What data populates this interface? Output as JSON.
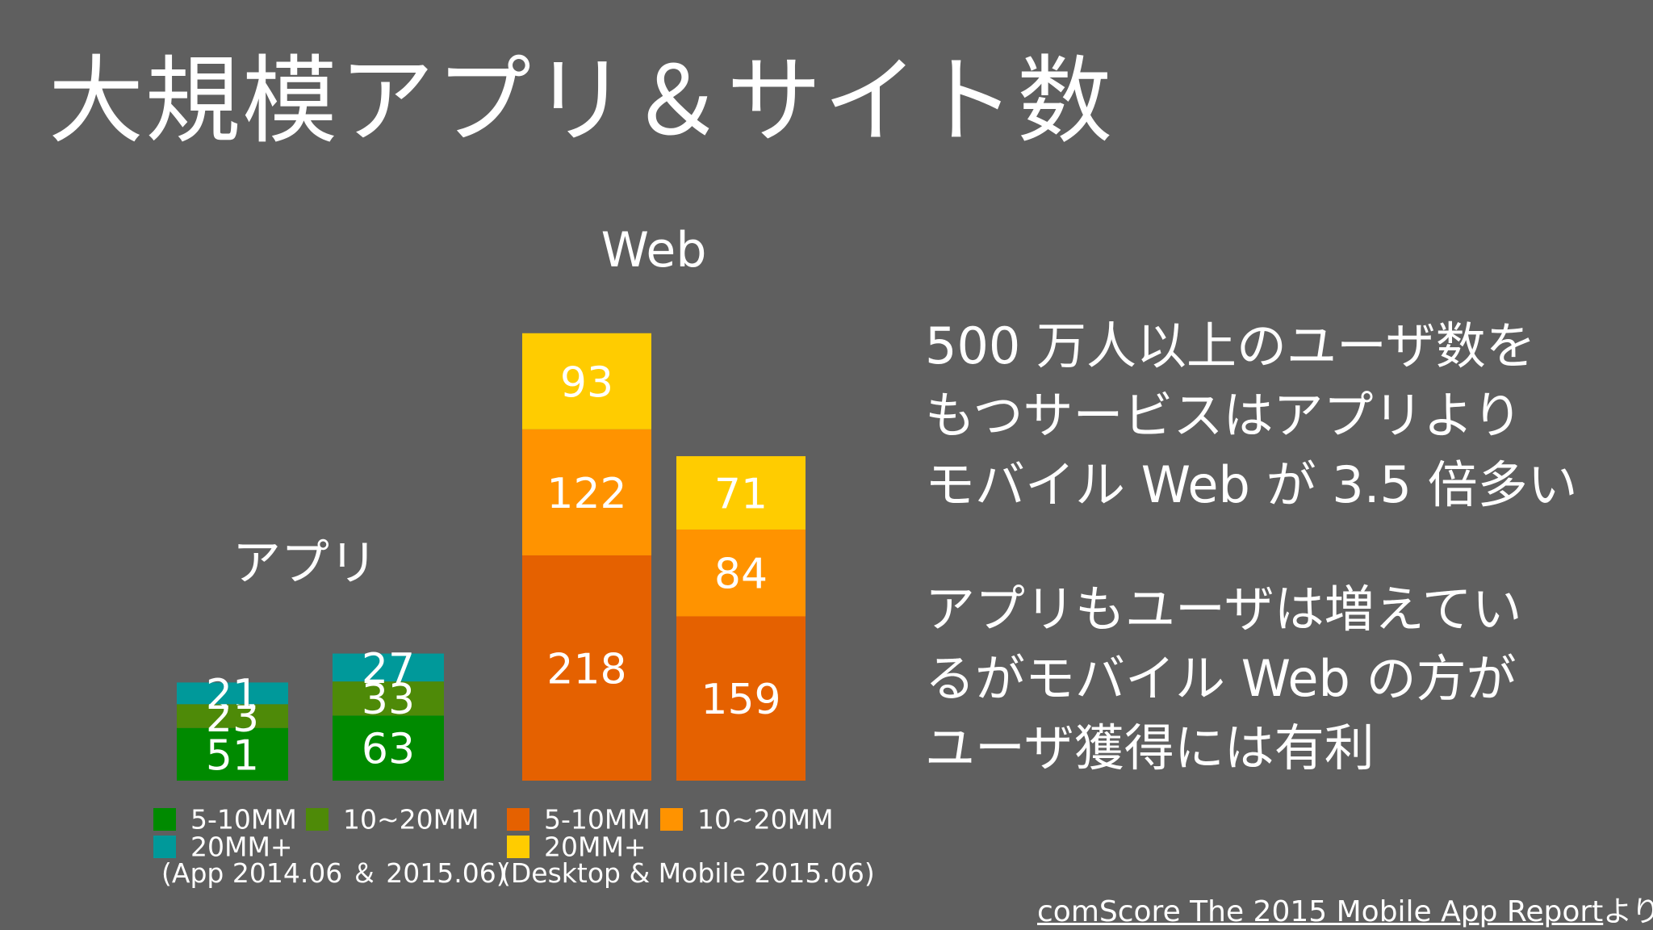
{
  "title": "大規模アプリ＆サイト数",
  "chart_data": [
    {
      "type": "bar",
      "stacked": true,
      "title": "アプリ",
      "categories": [
        "",
        ""
      ],
      "series": [
        {
          "name": "5-10MM",
          "values": [
            51,
            63
          ],
          "color": "#008a00"
        },
        {
          "name": "10~20MM",
          "values": [
            23,
            33
          ],
          "color": "#4e8a08"
        },
        {
          "name": "20MM+",
          "values": [
            21,
            27
          ],
          "color": "#00999a"
        }
      ],
      "note": "(App 2014.06 ＆ 2015.06)"
    },
    {
      "type": "bar",
      "stacked": true,
      "title": "Web",
      "categories": [
        "",
        ""
      ],
      "series": [
        {
          "name": "5-10MM",
          "values": [
            218,
            159
          ],
          "color": "#e56100"
        },
        {
          "name": "10~20MM",
          "values": [
            122,
            84
          ],
          "color": "#ff9300"
        },
        {
          "name": "20MM+",
          "values": [
            93,
            71
          ],
          "color": "#ffcc00"
        }
      ],
      "note": "(Desktop & Mobile 2015.06)"
    }
  ],
  "text": {
    "para1": [
      "500 万人以上のユーザ数を",
      "もつサービスはアプリより",
      "モバイル Web が 3.5 倍多い"
    ],
    "para2": [
      "アプリもユーザは増えてい",
      "るがモバイル Web の方が",
      "ユーザ獲得には有利"
    ]
  },
  "source": {
    "link_text": "comScore The 2015 Mobile App Report",
    "suffix": "より"
  }
}
